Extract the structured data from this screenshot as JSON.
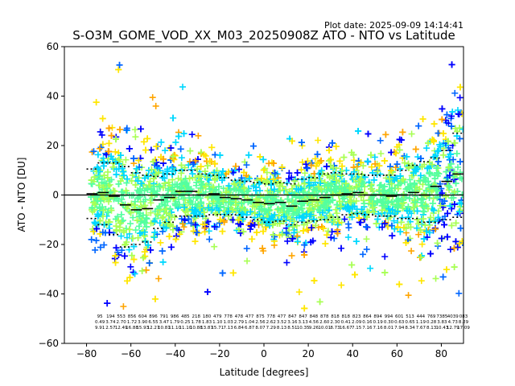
{
  "chart_data": {
    "type": "scatter",
    "title": "S-O3M_GOME_VOD_XX_M03_20250908Z ATO - NTO vs Latitude",
    "plot_date": "Plot date: 2025-09-09 14:14:41",
    "xlabel": "Latitude [degrees]",
    "ylabel": "ATO - NTO [DU]",
    "xlim": [
      -90,
      90
    ],
    "ylim": [
      -60,
      60
    ],
    "xticks": [
      -80,
      -60,
      -40,
      -20,
      0,
      20,
      40,
      60,
      80
    ],
    "yticks": [
      -60,
      -40,
      -20,
      0,
      20,
      40,
      60
    ],
    "grid": false,
    "marker": "+",
    "colormap": [
      "#0000ff",
      "#0066ff",
      "#00d8ff",
      "#54ff9f",
      "#a8ff54",
      "#ffe600",
      "#ffa500"
    ],
    "zero_line_color": "#000000",
    "bin_centers": [
      -77.5,
      -72.5,
      -67.5,
      -62.5,
      -57.5,
      -52.5,
      -47.5,
      -42.5,
      -37.5,
      -32.5,
      -27.5,
      -22.5,
      -17.5,
      -12.5,
      -7.5,
      -2.5,
      2.5,
      7.5,
      12.5,
      17.5,
      22.5,
      27.5,
      32.5,
      37.5,
      42.5,
      47.5,
      52.5,
      57.5,
      62.5,
      67.5,
      72.5,
      77.5,
      82.5,
      87.5
    ],
    "bin_mean": [
      0.5,
      1.0,
      -0.5,
      -4.0,
      -6.0,
      -5.5,
      -2.0,
      -1.0,
      1.5,
      1.5,
      0.0,
      0.5,
      -1.0,
      -1.5,
      -2.0,
      -3.0,
      -3.5,
      -3.0,
      -4.5,
      -2.5,
      -2.0,
      -1.0,
      0.0,
      0.5,
      1.0,
      0.0,
      0.0,
      -0.5,
      0.0,
      1.0,
      0.0,
      3.5,
      5.5,
      8.5
    ],
    "bin_upper": [
      10.5,
      13.0,
      13.0,
      11.5,
      9.0,
      8.0,
      7.5,
      8.5,
      10.0,
      10.0,
      8.5,
      8.0,
      7.0,
      6.0,
      5.5,
      5.0,
      4.5,
      5.0,
      4.5,
      6.5,
      7.0,
      8.5,
      9.0,
      8.5,
      8.5,
      8.0,
      8.0,
      8.0,
      10.0,
      12.0,
      13.5,
      15.0,
      18.0,
      25.0
    ],
    "bin_lower": [
      -9.5,
      -12.0,
      -16.0,
      -21.0,
      -20.0,
      -19.0,
      -13.5,
      -11.0,
      -8.5,
      -8.5,
      -8.5,
      -8.0,
      -8.0,
      -8.0,
      -9.0,
      -10.0,
      -11.0,
      -10.5,
      -12.0,
      -11.0,
      -10.5,
      -10.0,
      -9.0,
      -8.0,
      -7.5,
      -8.0,
      -8.5,
      -8.5,
      -9.5,
      -9.5,
      -11.0,
      -11.0,
      -10.0,
      -9.0
    ],
    "stats_rows": [
      [
        "95",
        "194",
        "553",
        "856",
        "604",
        "896",
        "791",
        "986",
        "485",
        "218",
        "180",
        "479",
        "778",
        "478",
        "477",
        "875",
        "778",
        "477",
        "847",
        "847",
        "848",
        "878",
        "818",
        "818",
        "823",
        "864",
        "894",
        "994",
        "601",
        "513",
        "444",
        "769",
        "7385",
        "4039",
        "083"
      ],
      [
        "0.49",
        "3.74",
        "2.70",
        "1.72",
        "3.90",
        "6.55",
        "3.47",
        "1.79",
        "0.25",
        "1.78",
        "1.83",
        "1.10",
        "1.03",
        "2.79",
        "1.04",
        "2.56",
        "2.62",
        "3.52",
        "3.16",
        "3.13",
        "4.56",
        "2.60",
        "2.30",
        "0.41",
        "2.09",
        "0.16",
        "0.19",
        "0.30",
        "0.63",
        "0.65",
        "1.19",
        "0.28",
        "3.83",
        "4.73",
        "8.29"
      ],
      [
        "9.91",
        "2.57",
        "12.49",
        "16.88",
        "15.93",
        "12.27",
        "10.81",
        "11.10",
        "11.10",
        "10.88",
        "13.87",
        "15.71",
        "7.13",
        "6.84",
        "6.87",
        "8.07",
        "7.29",
        "8.13",
        "8.51",
        "10.35",
        "9.26",
        "10.01",
        "8.73",
        "16.67",
        "7.15",
        "7.16",
        "7.16",
        "8.01",
        "7.94",
        "8.34",
        "7.67",
        "8.13",
        "10.43",
        "12.79",
        "17.09"
      ]
    ]
  }
}
